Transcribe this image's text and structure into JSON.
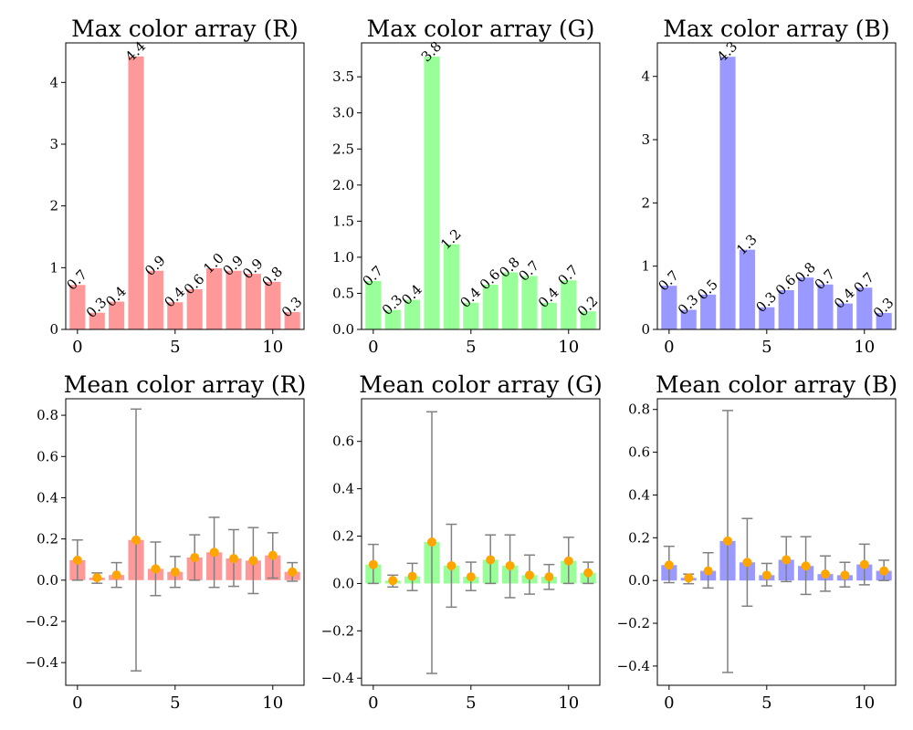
{
  "chart_data": [
    {
      "type": "bar",
      "title": "Max color array (R)",
      "color": "#ff9999",
      "x": [
        0,
        1,
        2,
        3,
        4,
        5,
        6,
        7,
        8,
        9,
        10,
        11
      ],
      "values": [
        0.72,
        0.27,
        0.45,
        4.42,
        0.95,
        0.44,
        0.65,
        0.99,
        0.95,
        0.9,
        0.77,
        0.28
      ],
      "data_labels": [
        "0.7",
        "0.3",
        "0.4",
        "4.4",
        "0.9",
        "0.4",
        "0.6",
        "1.0",
        "0.9",
        "0.9",
        "0.8",
        "0.3"
      ],
      "ylim": [
        0,
        4.64
      ],
      "yticks": [
        0,
        1,
        2,
        3,
        4
      ],
      "ytick_labels": [
        "0",
        "1",
        "2",
        "3",
        "4"
      ],
      "xticks": [
        0,
        5,
        10
      ],
      "xtick_labels": [
        "0",
        "5",
        "10"
      ],
      "xlim": [
        -0.6,
        11.6
      ]
    },
    {
      "type": "bar",
      "title": "Max color array (G)",
      "color": "#99ff99",
      "x": [
        0,
        1,
        2,
        3,
        4,
        5,
        6,
        7,
        8,
        9,
        10,
        11
      ],
      "values": [
        0.67,
        0.27,
        0.41,
        3.78,
        1.18,
        0.37,
        0.62,
        0.79,
        0.74,
        0.37,
        0.68,
        0.25
      ],
      "data_labels": [
        "0.7",
        "0.3",
        "0.4",
        "3.8",
        "1.2",
        "0.4",
        "0.6",
        "0.8",
        "0.7",
        "0.4",
        "0.7",
        "0.2"
      ],
      "ylim": [
        0,
        3.97
      ],
      "yticks": [
        0,
        0.5,
        1,
        1.5,
        2,
        2.5,
        3,
        3.5
      ],
      "ytick_labels": [
        "0.0",
        "0.5",
        "1.0",
        "1.5",
        "2.0",
        "2.5",
        "3.0",
        "3.5"
      ],
      "xticks": [
        0,
        5,
        10
      ],
      "xtick_labels": [
        "0",
        "5",
        "10"
      ],
      "xlim": [
        -0.6,
        11.6
      ]
    },
    {
      "type": "bar",
      "title": "Max color array (B)",
      "color": "#9999ff",
      "x": [
        0,
        1,
        2,
        3,
        4,
        5,
        6,
        7,
        8,
        9,
        10,
        11
      ],
      "values": [
        0.69,
        0.31,
        0.55,
        4.31,
        1.26,
        0.35,
        0.62,
        0.82,
        0.71,
        0.41,
        0.66,
        0.26
      ],
      "data_labels": [
        "0.7",
        "0.3",
        "0.5",
        "4.3",
        "1.3",
        "0.3",
        "0.6",
        "0.8",
        "0.7",
        "0.4",
        "0.7",
        "0.3"
      ],
      "ylim": [
        0,
        4.53
      ],
      "yticks": [
        0,
        1,
        2,
        3,
        4
      ],
      "ytick_labels": [
        "0",
        "1",
        "2",
        "3",
        "4"
      ],
      "xticks": [
        0,
        5,
        10
      ],
      "xtick_labels": [
        "0",
        "5",
        "10"
      ],
      "xlim": [
        -0.6,
        11.6
      ]
    },
    {
      "type": "bar",
      "title": "Mean color array (R)",
      "color": "#ff9999",
      "marker_color": "#ffa500",
      "errorbar_color": "#808080",
      "x": [
        0,
        1,
        2,
        3,
        4,
        5,
        6,
        7,
        8,
        9,
        10,
        11
      ],
      "values": [
        0.097,
        0.012,
        0.025,
        0.195,
        0.055,
        0.04,
        0.11,
        0.135,
        0.105,
        0.095,
        0.12,
        0.04
      ],
      "err_upper": [
        0.195,
        0.035,
        0.085,
        0.83,
        0.185,
        0.115,
        0.22,
        0.305,
        0.245,
        0.255,
        0.23,
        0.085
      ],
      "err_lower": [
        0.0,
        -0.015,
        -0.035,
        -0.44,
        -0.075,
        -0.035,
        0.0,
        -0.035,
        -0.03,
        -0.065,
        0.01,
        -0.005
      ],
      "ylim": [
        -0.51,
        0.88
      ],
      "yticks": [
        -0.4,
        -0.2,
        0,
        0.2,
        0.4,
        0.6,
        0.8
      ],
      "ytick_labels": [
        "−0.4",
        "−0.2",
        "0.0",
        "0.2",
        "0.4",
        "0.6",
        "0.8"
      ],
      "xticks": [
        0,
        5,
        10
      ],
      "xtick_labels": [
        "0",
        "5",
        "10"
      ],
      "xlim": [
        -0.6,
        11.6
      ]
    },
    {
      "type": "bar",
      "title": "Mean color array (G)",
      "color": "#99ff99",
      "marker_color": "#ffa500",
      "errorbar_color": "#808080",
      "x": [
        0,
        1,
        2,
        3,
        4,
        5,
        6,
        7,
        8,
        9,
        10,
        11
      ],
      "values": [
        0.08,
        0.012,
        0.03,
        0.175,
        0.075,
        0.028,
        0.1,
        0.075,
        0.035,
        0.028,
        0.095,
        0.045
      ],
      "err_upper": [
        0.165,
        0.035,
        0.085,
        0.725,
        0.25,
        0.09,
        0.205,
        0.205,
        0.12,
        0.08,
        0.195,
        0.09
      ],
      "err_lower": [
        0.0,
        -0.015,
        -0.03,
        -0.38,
        -0.1,
        -0.03,
        0.0,
        -0.06,
        -0.045,
        -0.025,
        0.0,
        0.0
      ],
      "ylim": [
        -0.43,
        0.78
      ],
      "yticks": [
        -0.4,
        -0.2,
        0,
        0.2,
        0.4,
        0.6
      ],
      "ytick_labels": [
        "−0.4",
        "−0.2",
        "0.0",
        "0.2",
        "0.4",
        "0.6"
      ],
      "xticks": [
        0,
        5,
        10
      ],
      "xtick_labels": [
        "0",
        "5",
        "10"
      ],
      "xlim": [
        -0.6,
        11.6
      ]
    },
    {
      "type": "bar",
      "title": "Mean color array (B)",
      "color": "#9999ff",
      "marker_color": "#ffa500",
      "errorbar_color": "#808080",
      "x": [
        0,
        1,
        2,
        3,
        4,
        5,
        6,
        7,
        8,
        9,
        10,
        11
      ],
      "values": [
        0.072,
        0.012,
        0.045,
        0.185,
        0.085,
        0.025,
        0.097,
        0.068,
        0.03,
        0.025,
        0.075,
        0.045
      ],
      "err_upper": [
        0.16,
        0.03,
        0.13,
        0.795,
        0.29,
        0.08,
        0.205,
        0.205,
        0.115,
        0.085,
        0.17,
        0.095
      ],
      "err_lower": [
        -0.01,
        -0.015,
        -0.035,
        -0.43,
        -0.12,
        -0.025,
        -0.005,
        -0.065,
        -0.05,
        -0.03,
        -0.02,
        0.0
      ],
      "ylim": [
        -0.49,
        0.85
      ],
      "yticks": [
        -0.4,
        -0.2,
        0,
        0.2,
        0.4,
        0.6,
        0.8
      ],
      "ytick_labels": [
        "−0.4",
        "−0.2",
        "0.0",
        "0.2",
        "0.4",
        "0.6",
        "0.8"
      ],
      "xticks": [
        0,
        5,
        10
      ],
      "xtick_labels": [
        "0",
        "5",
        "10"
      ],
      "xlim": [
        -0.6,
        11.6
      ]
    }
  ]
}
